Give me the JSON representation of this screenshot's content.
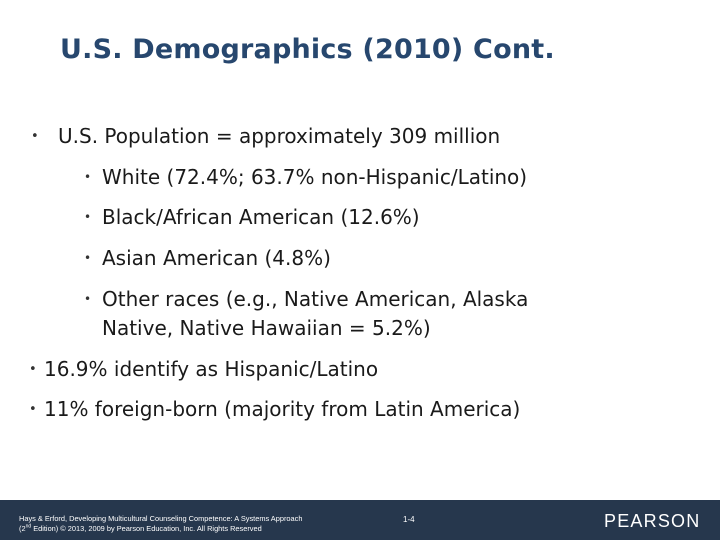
{
  "slide": {
    "title": "U.S. Demographics (2010) Cont.",
    "bullets": {
      "population": "U.S. Population = approximately 309 million",
      "white": "White (72.4%; 63.7% non-Hispanic/Latino)",
      "black": "Black/African American (12.6%)",
      "asian": "Asian American (4.8%)",
      "other_line1": "Other races (e.g., Native American, Alaska",
      "other_line2": "Native, Native Hawaiian = 5.2%)",
      "hispanic": "16.9% identify as Hispanic/Latino",
      "foreign_born": "11% foreign-born (majority from Latin America)"
    },
    "bullet_glyph": "•"
  },
  "footer": {
    "citation_line1": "Hays & Erford, Developing Multicultural Counseling Competence: A Systems Approach",
    "citation_line2_pre": "(2",
    "citation_line2_sup": "nd",
    "citation_line2_post": " Edition) © 2013, 2009 by Pearson Education, Inc. All Rights Reserved",
    "page_number": "1-4",
    "logo": "PEARSON"
  },
  "colors": {
    "title": "#27476e",
    "footer_bar": "#26374d",
    "text": "#1a1a1a"
  }
}
